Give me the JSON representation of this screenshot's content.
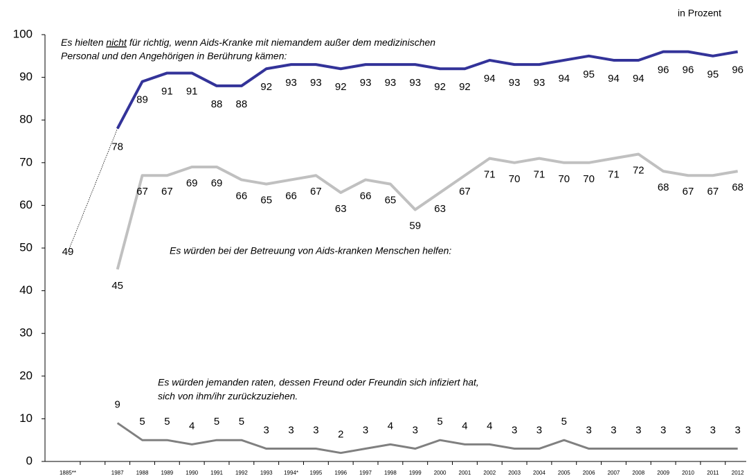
{
  "chart_data": {
    "type": "line",
    "unit_label": "in Prozent",
    "annotations": [
      {
        "lines": [
          "Es hielten nicht für richtig, wenn  Aids-Kranke mit niemandem außer dem medizinischen",
          "Personal und den Angehörigen in Berührung kämen:"
        ],
        "underline": "nicht"
      },
      {
        "lines": [
          "Es würden bei der Betreuung von Aids-kranken Menschen helfen:"
        ]
      },
      {
        "lines": [
          "Es würden jemanden raten, dessen Freund oder Freundin sich infiziert hat,",
          "sich von ihm/ihr zurückzuziehen."
        ]
      }
    ],
    "categories": [
      "1885**",
      null,
      "1987",
      "1988",
      "1989",
      "1990",
      "1991",
      "1992",
      "1993",
      "1994*",
      "1995",
      "1996",
      "1997",
      "1998",
      "1999",
      "2000",
      "2001",
      "2002",
      "2003",
      "2004",
      "2005",
      "2006",
      "2007",
      "2008",
      "2009",
      "2010",
      "2011",
      "2012"
    ],
    "series": [
      {
        "color": "#333399",
        "values": [
          49,
          null,
          78,
          89,
          91,
          91,
          88,
          88,
          92,
          93,
          93,
          92,
          93,
          93,
          93,
          92,
          92,
          94,
          93,
          93,
          94,
          95,
          94,
          94,
          96,
          96,
          95,
          96
        ]
      },
      {
        "color": "#c0c0c0",
        "values": [
          null,
          null,
          45,
          67,
          67,
          69,
          69,
          66,
          65,
          66,
          67,
          63,
          66,
          65,
          59,
          63,
          67,
          71,
          70,
          71,
          70,
          70,
          71,
          72,
          68,
          67,
          67,
          68
        ]
      },
      {
        "color": "#808080",
        "values": [
          null,
          null,
          9,
          5,
          5,
          4,
          5,
          5,
          3,
          3,
          3,
          2,
          3,
          4,
          3,
          5,
          4,
          4,
          3,
          3,
          5,
          3,
          3,
          3,
          3,
          3,
          3,
          3
        ]
      }
    ],
    "ylim": [
      0,
      100
    ],
    "yticks": [
      0,
      10,
      20,
      30,
      40,
      50,
      60,
      70,
      80,
      90,
      100
    ],
    "grid": false
  }
}
